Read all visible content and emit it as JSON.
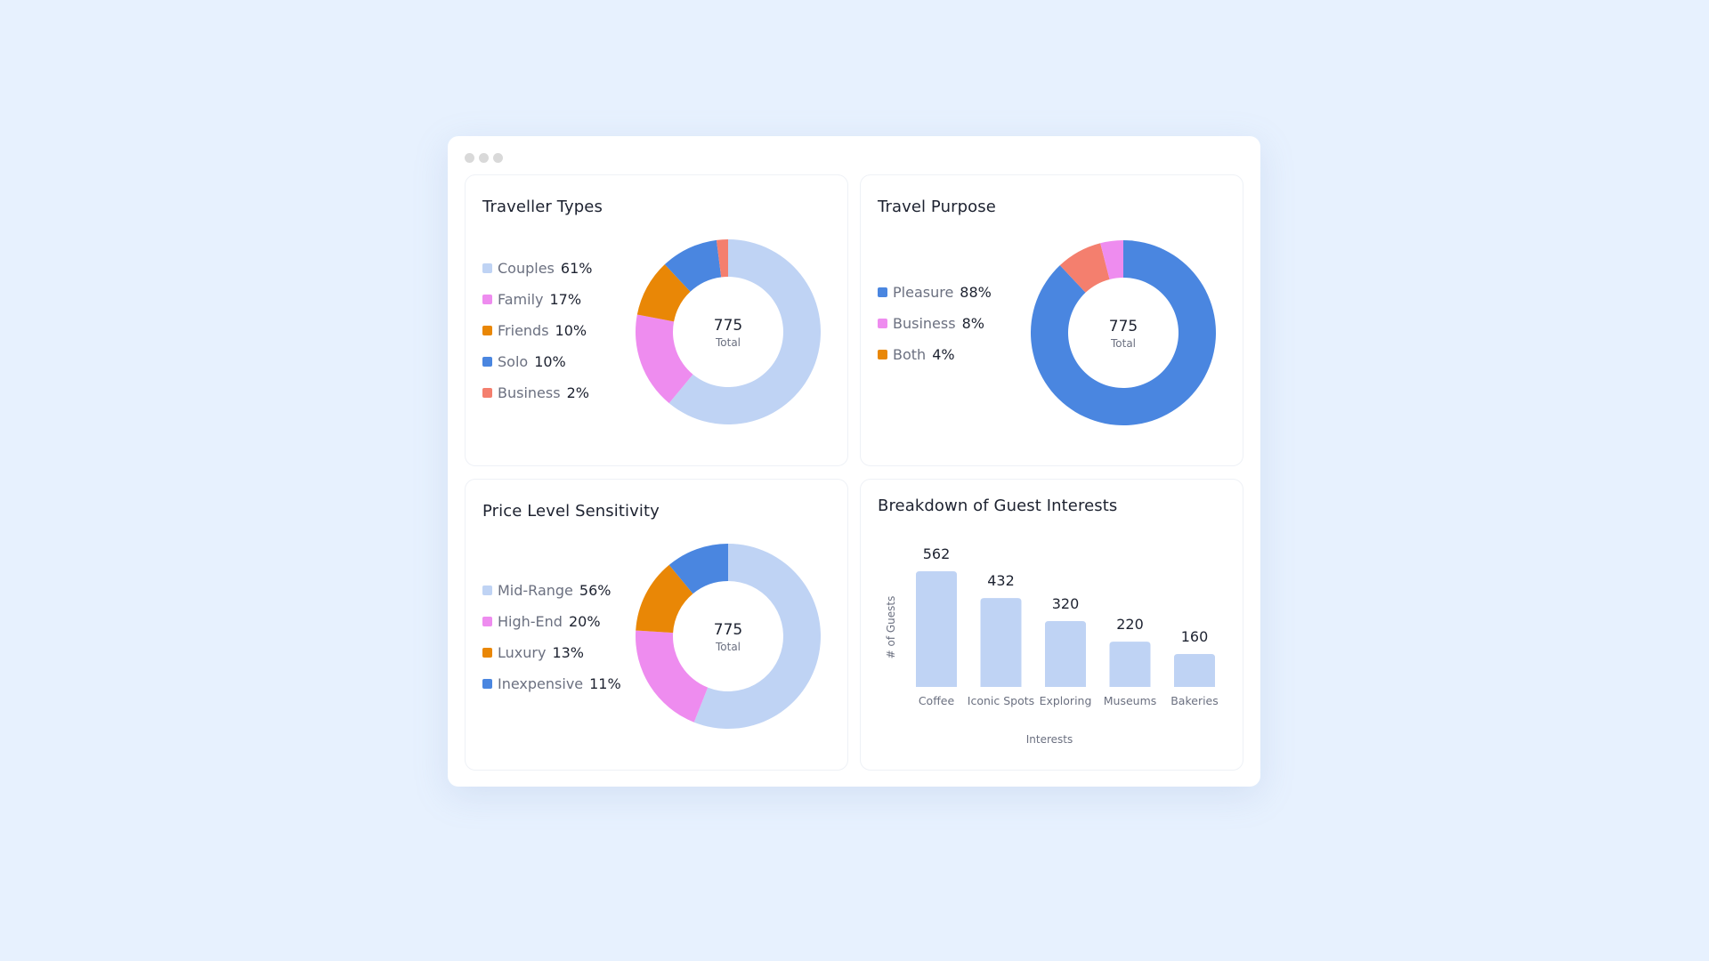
{
  "colors": {
    "light_blue": "#bfd3f4",
    "pink": "#ee8cef",
    "orange": "#e98706",
    "blue": "#4a86e0",
    "coral": "#f47f6e"
  },
  "traveller_types": {
    "title": "Traveller Types",
    "center_value": "775",
    "center_label": "Total",
    "items": [
      {
        "label": "Couples",
        "pct_label": "61%",
        "value": 61,
        "color": "#bfd3f4"
      },
      {
        "label": "Family",
        "pct_label": "17%",
        "value": 17,
        "color": "#ee8cef"
      },
      {
        "label": "Friends",
        "pct_label": "10%",
        "value": 10,
        "color": "#e98706"
      },
      {
        "label": "Solo",
        "pct_label": "10%",
        "value": 10,
        "color": "#4a86e0"
      },
      {
        "label": "Business",
        "pct_label": "2%",
        "value": 2,
        "color": "#f47f6e"
      }
    ]
  },
  "travel_purpose": {
    "title": "Travel Purpose",
    "center_value": "775",
    "center_label": "Total",
    "items": [
      {
        "label": "Pleasure",
        "pct_label": "88%",
        "value": 88,
        "color": "#4a86e0"
      },
      {
        "label": "Business",
        "pct_label": "8%",
        "value": 8,
        "color": "#ee8cef"
      },
      {
        "label": "Both",
        "pct_label": "4%",
        "value": 4,
        "color": "#e98706"
      }
    ],
    "chart_colors": [
      "#4a86e0",
      "#f47f6e",
      "#ee8cef"
    ]
  },
  "price_level": {
    "title": "Price Level Sensitivity",
    "center_value": "775",
    "center_label": "Total",
    "items": [
      {
        "label": "Mid-Range",
        "pct_label": "56%",
        "value": 56,
        "color": "#bfd3f4"
      },
      {
        "label": "High-End",
        "pct_label": "20%",
        "value": 20,
        "color": "#ee8cef"
      },
      {
        "label": "Luxury",
        "pct_label": "13%",
        "value": 13,
        "color": "#e98706"
      },
      {
        "label": "Inexpensive",
        "pct_label": "11%",
        "value": 11,
        "color": "#4a86e0"
      }
    ]
  },
  "guest_interests": {
    "title": "Breakdown of Guest Interests",
    "ylabel": "# of Guests",
    "xlabel": "Interests",
    "bar_color": "#bfd3f4"
  },
  "chart_data": [
    {
      "type": "pie",
      "title": "Traveller Types",
      "categories": [
        "Couples",
        "Family",
        "Friends",
        "Solo",
        "Business"
      ],
      "values": [
        61,
        17,
        10,
        10,
        2
      ],
      "center_text": "775 Total",
      "legend": "left"
    },
    {
      "type": "pie",
      "title": "Travel Purpose",
      "categories": [
        "Pleasure",
        "Business",
        "Both"
      ],
      "values": [
        88,
        8,
        4
      ],
      "center_text": "775 Total",
      "legend": "left"
    },
    {
      "type": "pie",
      "title": "Price Level Sensitivity",
      "categories": [
        "Mid-Range",
        "High-End",
        "Luxury",
        "Inexpensive"
      ],
      "values": [
        56,
        20,
        13,
        11
      ],
      "center_text": "775 Total",
      "legend": "left"
    },
    {
      "type": "bar",
      "title": "Breakdown of Guest Interests",
      "categories": [
        "Coffee",
        "Iconic Spots",
        "Exploring",
        "Museums",
        "Bakeries"
      ],
      "values": [
        562,
        432,
        320,
        220,
        160
      ],
      "xlabel": "Interests",
      "ylabel": "# of Guests",
      "ylim": [
        0,
        600
      ],
      "grid": false
    }
  ]
}
